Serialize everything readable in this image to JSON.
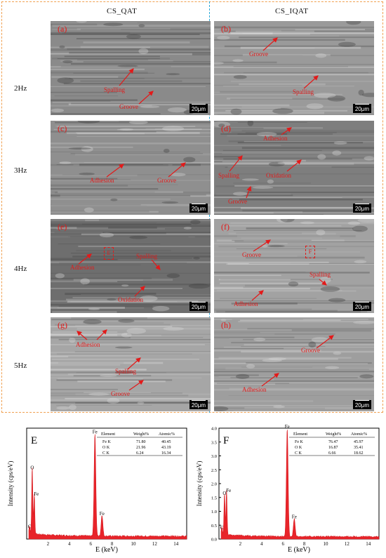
{
  "columns": [
    "CS_QAT",
    "CS_IQAT"
  ],
  "rows": [
    "2Hz",
    "3Hz",
    "4Hz",
    "5Hz"
  ],
  "scale_bar": "20μm",
  "panels": [
    {
      "letter": "(a)",
      "tone": "#8a8a8a",
      "labels": [
        "Spalling",
        "Groove"
      ]
    },
    {
      "letter": "(b)",
      "tone": "#9a9a9a",
      "labels": [
        "Groove",
        "Spalling"
      ]
    },
    {
      "letter": "(c)",
      "tone": "#8f8f8f",
      "labels": [
        "Adhesion",
        "Groove"
      ]
    },
    {
      "letter": "(d)",
      "tone": "#7e7e7e",
      "labels": [
        "Adhesion",
        "Spalling",
        "Oxidation",
        "Groove"
      ]
    },
    {
      "letter": "(e)",
      "tone": "#6e6e6e",
      "labels": [
        "Adhesion",
        "Spalling",
        "Oxidation"
      ],
      "box": "E"
    },
    {
      "letter": "(f)",
      "tone": "#a2a2a2",
      "labels": [
        "Groove",
        "Spalling",
        "Adhesion"
      ],
      "box": "F"
    },
    {
      "letter": "(g)",
      "tone": "#a6a6a6",
      "labels": [
        "Adhesion",
        "Spalling",
        "Groove"
      ]
    },
    {
      "letter": "(h)",
      "tone": "#9e9e9e",
      "labels": [
        "Groove",
        "Adhesion"
      ]
    }
  ],
  "chart_data": [
    {
      "type": "area",
      "panel_label": "E",
      "xlabel": "E (keV)",
      "ylabel": "Intensity (cps/eV)",
      "xlim": [
        0,
        15
      ],
      "xticks": [
        "2",
        "4",
        "6",
        "8",
        "10",
        "12",
        "14"
      ],
      "ylim": [
        0,
        3.4
      ],
      "peaks": [
        {
          "label": "C",
          "x": 0.27,
          "y": 0.25
        },
        {
          "label": "O",
          "x": 0.52,
          "y": 2.05
        },
        {
          "label": "Fe",
          "x": 0.71,
          "y": 1.25
        },
        {
          "label": "Fe",
          "x": 6.4,
          "y": 3.15
        },
        {
          "label": "Fe",
          "x": 7.06,
          "y": 0.65
        }
      ],
      "table": {
        "headers": [
          "Element",
          "Weight%",
          "Atomic%"
        ],
        "rows": [
          [
            "Fe K",
            "71.80",
            "40.45"
          ],
          [
            "O K",
            "21.96",
            "43.19"
          ],
          [
            "C K",
            "6.24",
            "16.34"
          ]
        ]
      }
    },
    {
      "type": "area",
      "panel_label": "F",
      "xlabel": "E (keV)",
      "ylabel": "Intensity (cps/eV)",
      "xlim": [
        0,
        15
      ],
      "xticks": [
        "2",
        "4",
        "6",
        "8",
        "10",
        "12",
        "14"
      ],
      "ylim": [
        0,
        4.0
      ],
      "yticks": [
        "0.0",
        "0.5",
        "1.0",
        "1.5",
        "2.0",
        "2.5",
        "3.0",
        "3.5",
        "4.0"
      ],
      "peaks": [
        {
          "label": "C",
          "x": 0.27,
          "y": 0.25
        },
        {
          "label": "O",
          "x": 0.52,
          "y": 1.5
        },
        {
          "label": "Fe",
          "x": 0.71,
          "y": 1.6
        },
        {
          "label": "Fe",
          "x": 6.4,
          "y": 3.9
        },
        {
          "label": "Fe",
          "x": 7.06,
          "y": 0.65
        }
      ],
      "table": {
        "headers": [
          "Element",
          "Weight%",
          "Atomic%"
        ],
        "rows": [
          [
            "Fe K",
            "76.47",
            "45.97"
          ],
          [
            "O K",
            "16.87",
            "35.41"
          ],
          [
            "C K",
            "6.66",
            "18.62"
          ]
        ]
      }
    }
  ]
}
